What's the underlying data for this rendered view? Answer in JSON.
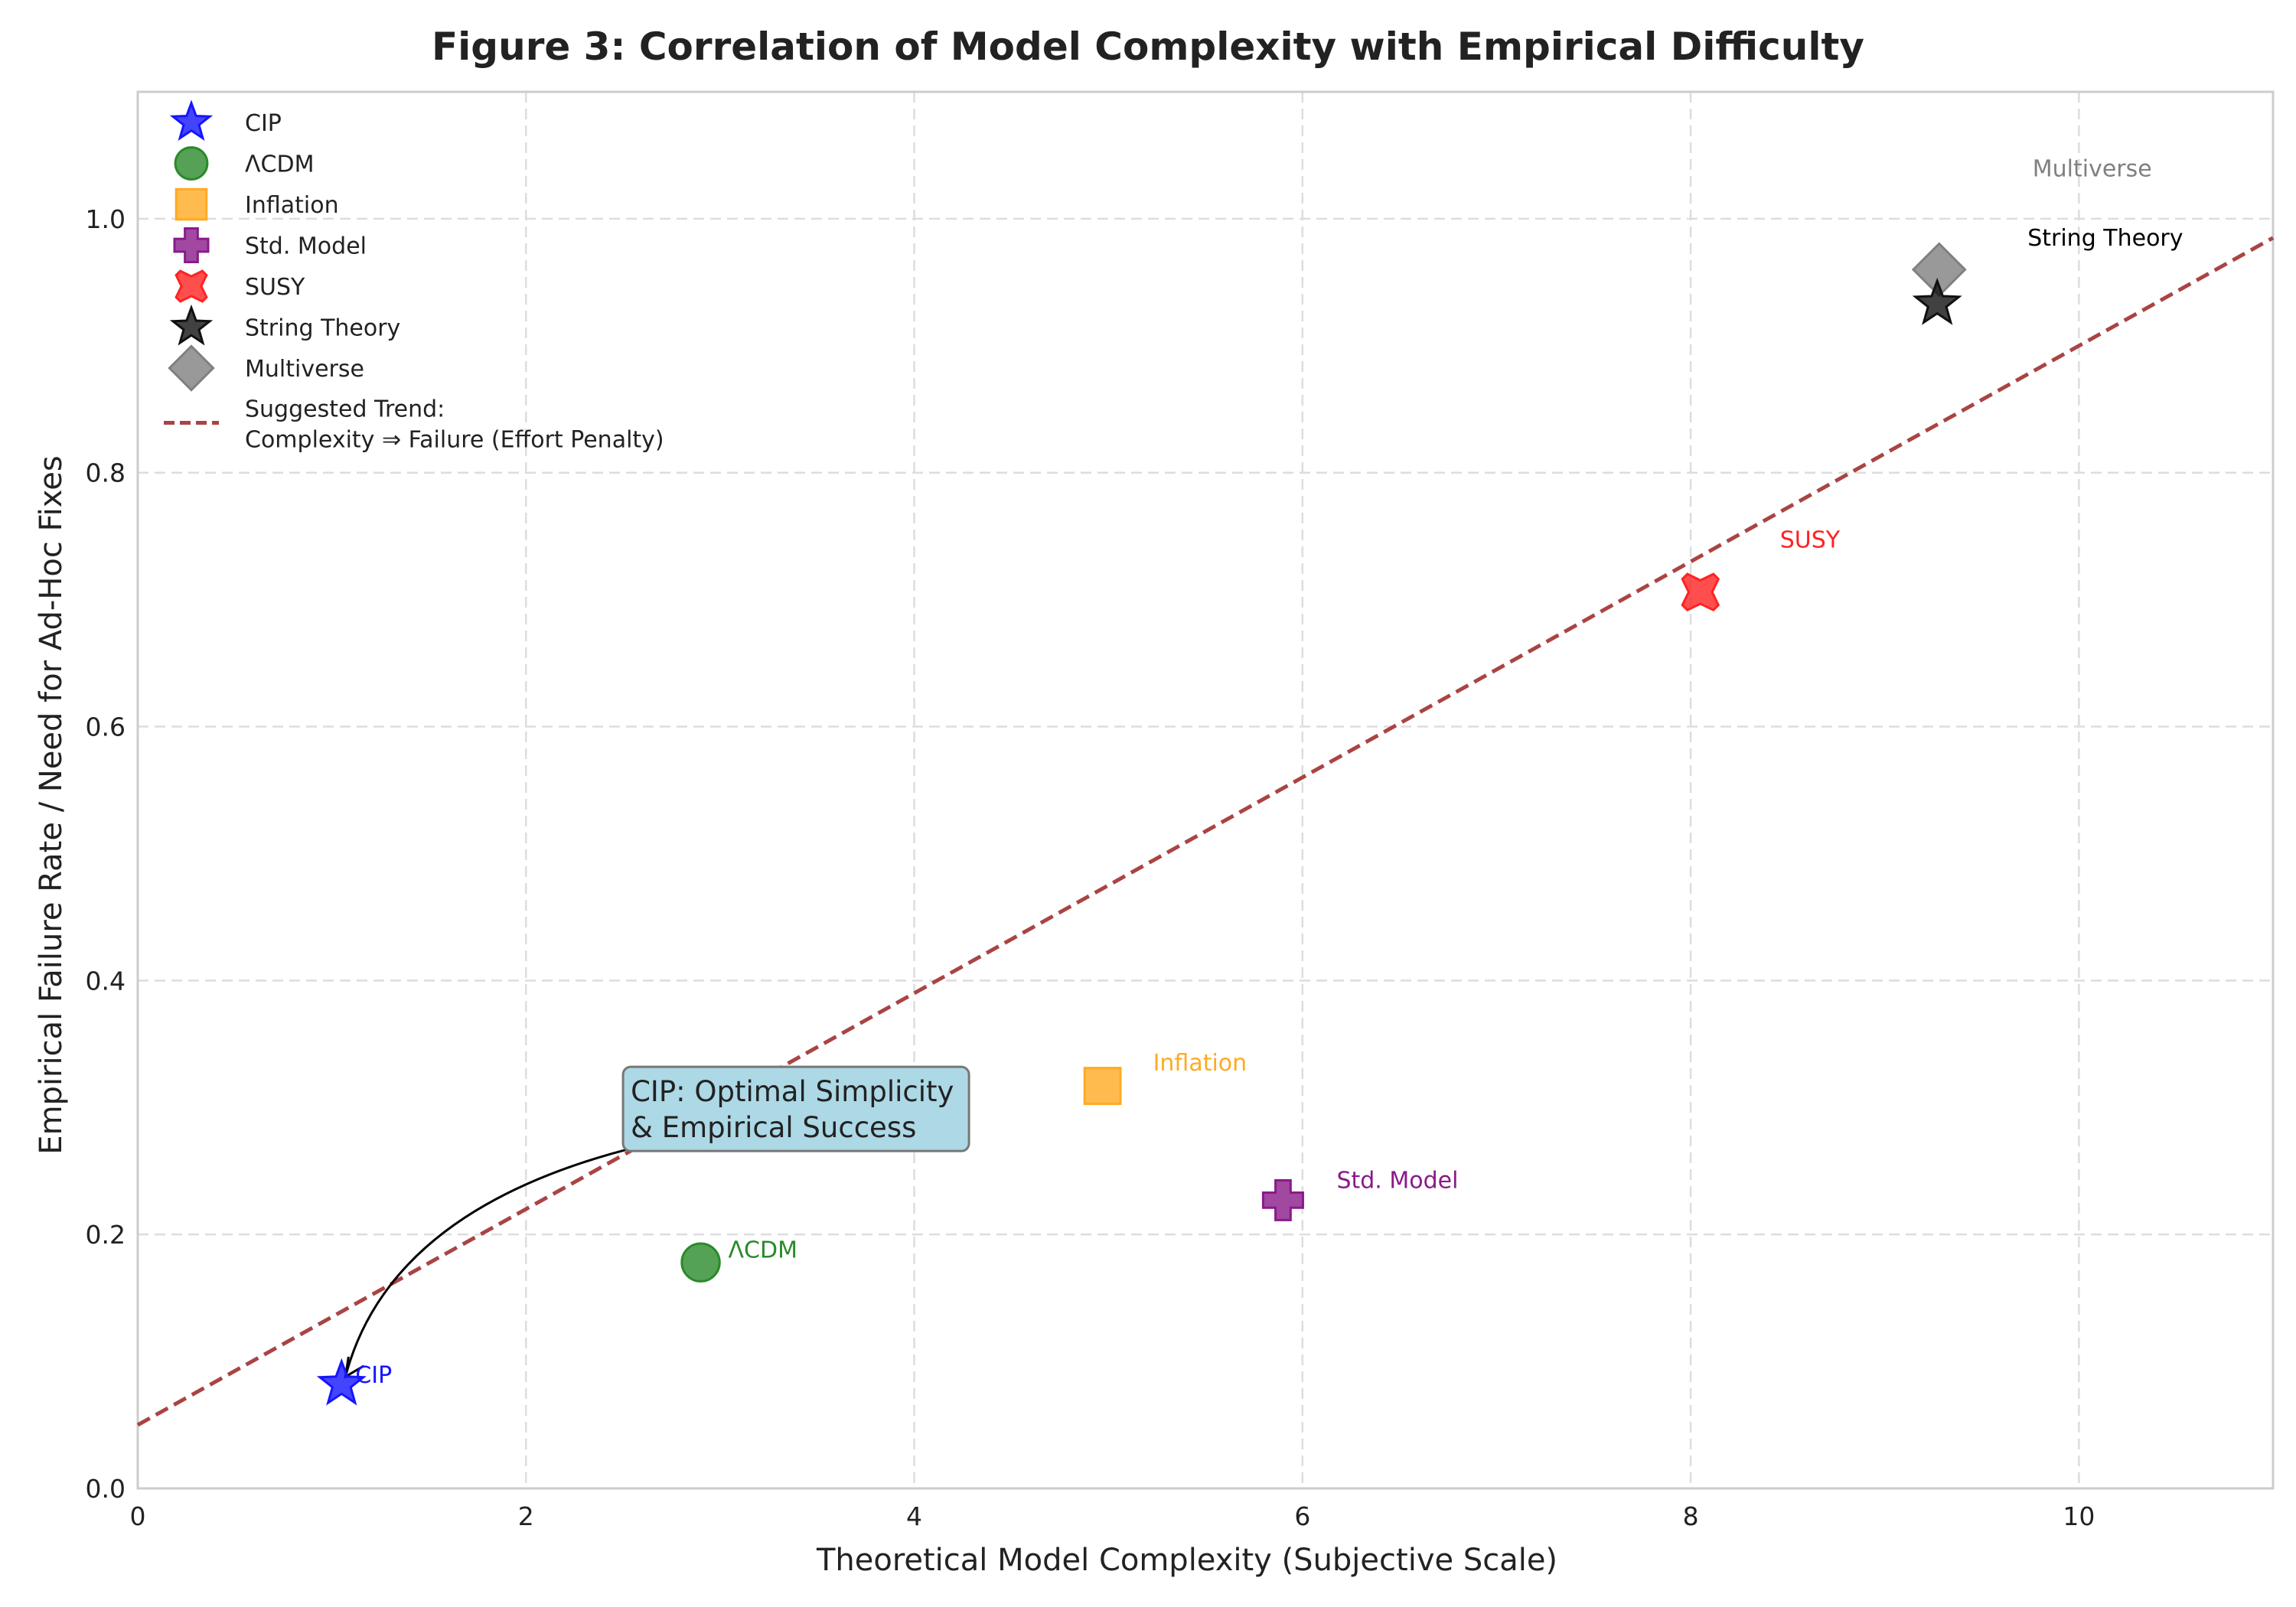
{
  "chart_data": {
    "type": "scatter",
    "title": "Figure 3: Correlation of Model Complexity with Empirical Difficulty",
    "xlabel": "Theoretical Model Complexity (Subjective Scale)",
    "ylabel": "Empirical Failure Rate / Need for Ad-Hoc Fixes",
    "xlim": [
      0,
      11
    ],
    "ylim": [
      0,
      1.1
    ],
    "xticks": [
      0,
      2,
      4,
      6,
      8,
      10
    ],
    "yticks": [
      0.0,
      0.2,
      0.4,
      0.6,
      0.8,
      1.0
    ],
    "grid": true,
    "legend_position": "top-left",
    "series": [
      {
        "name": "CIP",
        "x": 1.05,
        "y": 0.082,
        "marker": "star",
        "color": "#1515ff",
        "label": "CIP"
      },
      {
        "name": "ΛCDM",
        "x": 2.9,
        "y": 0.178,
        "marker": "circle",
        "color": "#2a8a2a",
        "label": "ΛCDM"
      },
      {
        "name": "Inflation",
        "x": 4.97,
        "y": 0.317,
        "marker": "square",
        "color": "#ffaa22",
        "label": "Inflation"
      },
      {
        "name": "Std. Model",
        "x": 5.9,
        "y": 0.227,
        "marker": "plus",
        "color": "#8a1a8a",
        "label": "Std. Model"
      },
      {
        "name": "SUSY",
        "x": 8.05,
        "y": 0.706,
        "marker": "x",
        "color": "#ff2222",
        "label": "SUSY"
      },
      {
        "name": "String Theory",
        "x": 9.27,
        "y": 0.933,
        "marker": "star",
        "color": "#111111",
        "label": "String Theory"
      },
      {
        "name": "Multiverse",
        "x": 9.28,
        "y": 0.96,
        "marker": "diamond",
        "color": "#808080",
        "label": "Multiverse"
      }
    ],
    "trend": {
      "name_line1": "Suggested Trend:",
      "name_line2": "Complexity  ⇒  Failure (Effort Penalty)",
      "intercept": 0.05,
      "slope": 0.085,
      "color": "#aa4444"
    },
    "annotation": {
      "line1": "CIP: Optimal Simplicity",
      "line2": "& Empirical Success",
      "text_x": 2.6,
      "text_y": 0.285,
      "arrow_to_x": 1.07,
      "arrow_to_y": 0.082
    }
  }
}
